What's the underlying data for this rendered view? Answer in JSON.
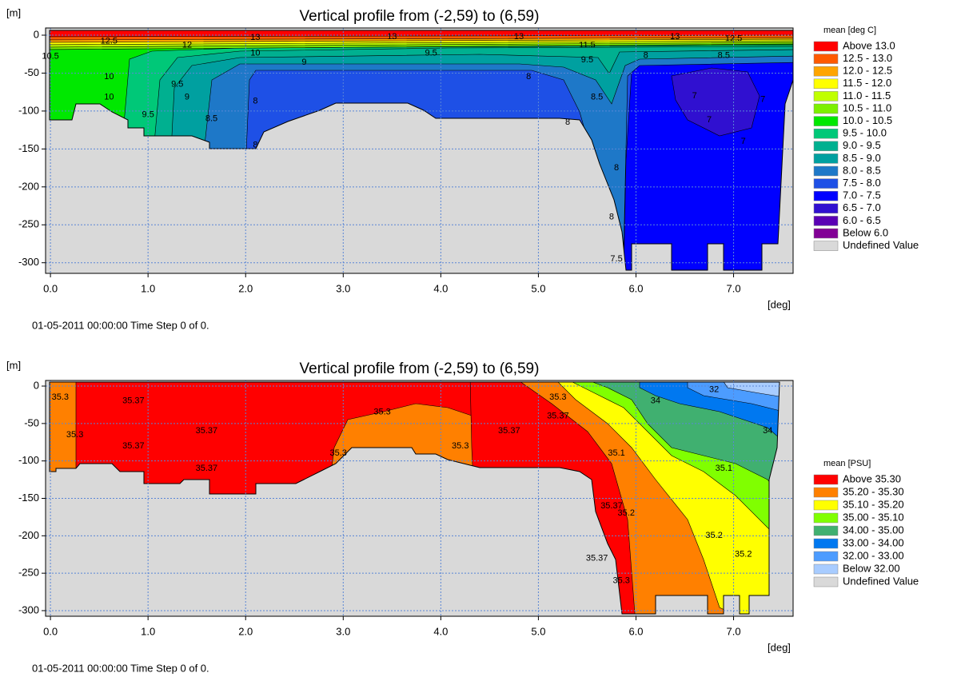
{
  "chart_data": [
    {
      "type": "contour",
      "title": "Vertical profile from (-2,59) to (6,59)",
      "y_label": "[m]",
      "x_label": "[deg]",
      "footer": "01-05-2011 00:00:00  Time Step 0 of 0.",
      "xlim": [
        -0.05,
        7.61
      ],
      "ylim": [
        -314,
        9.5
      ],
      "xticks": [
        {
          "value": 0,
          "label": "0.0"
        },
        {
          "value": 1,
          "label": "1.0"
        },
        {
          "value": 2,
          "label": "2.0"
        },
        {
          "value": 3,
          "label": "3.0"
        },
        {
          "value": 4,
          "label": "4.0"
        },
        {
          "value": 5,
          "label": "5.0"
        },
        {
          "value": 6,
          "label": "6.0"
        },
        {
          "value": 7,
          "label": "7.0"
        }
      ],
      "yticks": [
        0,
        -50,
        -100,
        -150,
        -200,
        -250,
        -300
      ],
      "grid": true,
      "legend": {
        "title": "mean [deg C]",
        "entries": [
          {
            "label": "Above 13.0",
            "color": "#ff0000"
          },
          {
            "label": "12.5 - 13.0",
            "color": "#ff5a00"
          },
          {
            "label": "12.0 - 12.5",
            "color": "#ffa500"
          },
          {
            "label": "11.5 - 12.0",
            "color": "#ffff00"
          },
          {
            "label": "11.0 - 11.5",
            "color": "#c0ff00"
          },
          {
            "label": "10.5 - 11.0",
            "color": "#7cf000"
          },
          {
            "label": "10.0 - 10.5",
            "color": "#00e800"
          },
          {
            "label": "9.5 - 10.0",
            "color": "#00c878"
          },
          {
            "label": "9.0 -  9.5",
            "color": "#00b090"
          },
          {
            "label": "8.5 -  9.0",
            "color": "#00a0a0"
          },
          {
            "label": "8.0 -  8.5",
            "color": "#1e78c8"
          },
          {
            "label": "7.5 -  8.0",
            "color": "#1e50e6"
          },
          {
            "label": "7.0 -  7.5",
            "color": "#0000ff"
          },
          {
            "label": "6.5 -  7.0",
            "color": "#3010d0"
          },
          {
            "label": "6.0 -  6.5",
            "color": "#5a00b4"
          },
          {
            "label": "Below  6.0",
            "color": "#820096"
          },
          {
            "label": "Undefined Value",
            "color": "#d9d9d9"
          }
        ]
      },
      "contour_labels": [
        {
          "x": 0.6,
          "y": -8,
          "value": 12.5
        },
        {
          "x": 1.4,
          "y": -13,
          "value": 12
        },
        {
          "x": 2.1,
          "y": -3,
          "value": 13
        },
        {
          "x": 3.5,
          "y": -2,
          "value": 13
        },
        {
          "x": 4.8,
          "y": -2,
          "value": 13
        },
        {
          "x": 5.5,
          "y": -13,
          "value": 11.5
        },
        {
          "x": 6.4,
          "y": -2,
          "value": 13
        },
        {
          "x": 7.0,
          "y": -5,
          "value": 12.5
        },
        {
          "x": 2.1,
          "y": -24,
          "value": 10
        },
        {
          "x": 3.9,
          "y": -24,
          "value": 9.5
        },
        {
          "x": 2.6,
          "y": -36,
          "value": 9
        },
        {
          "x": 5.5,
          "y": -33,
          "value": 9.5
        },
        {
          "x": 6.1,
          "y": -27,
          "value": 8
        },
        {
          "x": 6.9,
          "y": -27,
          "value": 8.5
        },
        {
          "x": 0.0,
          "y": -28,
          "value": 10.5
        },
        {
          "x": 0.6,
          "y": -55,
          "value": 10
        },
        {
          "x": 0.6,
          "y": -82,
          "value": 10
        },
        {
          "x": 1.3,
          "y": -65,
          "value": 9.5
        },
        {
          "x": 1.0,
          "y": -105,
          "value": 9.5
        },
        {
          "x": 1.4,
          "y": -82,
          "value": 9
        },
        {
          "x": 1.65,
          "y": -110,
          "value": 8.5
        },
        {
          "x": 2.1,
          "y": -87,
          "value": 8
        },
        {
          "x": 2.1,
          "y": -145,
          "value": 8
        },
        {
          "x": 4.9,
          "y": -55,
          "value": 8
        },
        {
          "x": 5.6,
          "y": -82,
          "value": 8.5
        },
        {
          "x": 5.3,
          "y": -115,
          "value": 8
        },
        {
          "x": 5.8,
          "y": -175,
          "value": 8
        },
        {
          "x": 5.75,
          "y": -240,
          "value": 8
        },
        {
          "x": 5.8,
          "y": -295,
          "value": 7.5
        },
        {
          "x": 6.6,
          "y": -80,
          "value": 7
        },
        {
          "x": 6.75,
          "y": -112,
          "value": 7
        },
        {
          "x": 7.1,
          "y": -140,
          "value": 7
        },
        {
          "x": 7.3,
          "y": -85,
          "value": 7
        }
      ]
    },
    {
      "type": "contour",
      "title": "Vertical profile from (-2,59) to (6,59)",
      "y_label": "[m]",
      "x_label": "[deg]",
      "footer": "01-05-2011 00:00:00  Time Step 0 of 0.",
      "xlim": [
        -0.05,
        7.61
      ],
      "ylim": [
        -307.5,
        7.5
      ],
      "xticks": [
        {
          "value": 0,
          "label": "0.0"
        },
        {
          "value": 1,
          "label": "1.0"
        },
        {
          "value": 2,
          "label": "2.0"
        },
        {
          "value": 3,
          "label": "3.0"
        },
        {
          "value": 4,
          "label": "4.0"
        },
        {
          "value": 5,
          "label": "5.0"
        },
        {
          "value": 6,
          "label": "6.0"
        },
        {
          "value": 7,
          "label": "7.0"
        }
      ],
      "yticks": [
        0,
        -50,
        -100,
        -150,
        -200,
        -250,
        -300
      ],
      "grid": true,
      "legend": {
        "title": "mean [PSU]",
        "entries": [
          {
            "label": "Above  35.30",
            "color": "#ff0000"
          },
          {
            "label": "35.20 - 35.30",
            "color": "#ff8000"
          },
          {
            "label": "35.10 - 35.20",
            "color": "#ffff00"
          },
          {
            "label": "35.00 - 35.10",
            "color": "#80ff00"
          },
          {
            "label": "34.00 - 35.00",
            "color": "#40b070"
          },
          {
            "label": "33.00 - 34.00",
            "color": "#0078f0"
          },
          {
            "label": "32.00 - 33.00",
            "color": "#4c9cff"
          },
          {
            "label": "Below  32.00",
            "color": "#a8ccff"
          },
          {
            "label": "Undefined Value",
            "color": "#d9d9d9"
          }
        ]
      },
      "contour_labels": [
        {
          "x": 0.1,
          "y": -15,
          "value": 35.3
        },
        {
          "x": 0.25,
          "y": -65,
          "value": 35.3
        },
        {
          "x": 0.85,
          "y": -20,
          "value": 35.37
        },
        {
          "x": 0.85,
          "y": -80,
          "value": 35.37
        },
        {
          "x": 1.6,
          "y": -60,
          "value": 35.37
        },
        {
          "x": 1.6,
          "y": -110,
          "value": 35.37
        },
        {
          "x": 2.95,
          "y": -90,
          "value": 35.3
        },
        {
          "x": 3.4,
          "y": -35,
          "value": 35.3
        },
        {
          "x": 4.2,
          "y": -80,
          "value": 35.3
        },
        {
          "x": 4.7,
          "y": -60,
          "value": 35.37
        },
        {
          "x": 5.2,
          "y": -40,
          "value": 35.37
        },
        {
          "x": 5.2,
          "y": -15,
          "value": 35.3
        },
        {
          "x": 5.9,
          "y": -170,
          "value": 35.2
        },
        {
          "x": 5.8,
          "y": -90,
          "value": 35.1
        },
        {
          "x": 6.9,
          "y": -110,
          "value": 35.1
        },
        {
          "x": 6.8,
          "y": -200,
          "value": 35.2
        },
        {
          "x": 7.1,
          "y": -225,
          "value": 35.2
        },
        {
          "x": 6.2,
          "y": -20,
          "value": 34
        },
        {
          "x": 7.35,
          "y": -60,
          "value": 34
        },
        {
          "x": 6.8,
          "y": -5,
          "value": 32
        },
        {
          "x": 5.75,
          "y": -160,
          "value": 35.37
        },
        {
          "x": 5.85,
          "y": -260,
          "value": 35.3
        },
        {
          "x": 5.6,
          "y": -230,
          "value": 35.37
        }
      ]
    }
  ]
}
